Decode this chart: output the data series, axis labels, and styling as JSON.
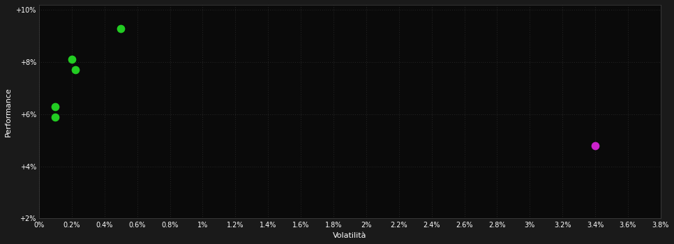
{
  "background_color": "#1a1a1a",
  "plot_bg_color": "#0a0a0a",
  "grid_color": "#444444",
  "text_color": "#ffffff",
  "xlabel": "Volatilità",
  "ylabel": "Performance",
  "xlim": [
    0.0,
    0.038
  ],
  "ylim": [
    0.02,
    0.102
  ],
  "xticks": [
    0.0,
    0.002,
    0.004,
    0.006,
    0.008,
    0.01,
    0.012,
    0.014,
    0.016,
    0.018,
    0.02,
    0.022,
    0.024,
    0.026,
    0.028,
    0.03,
    0.032,
    0.034,
    0.036,
    0.038
  ],
  "xtick_labels": [
    "0%",
    "0.2%",
    "0.4%",
    "0.6%",
    "0.8%",
    "1%",
    "1.2%",
    "1.4%",
    "1.6%",
    "1.8%",
    "2%",
    "2.2%",
    "2.4%",
    "2.6%",
    "2.8%",
    "3%",
    "3.2%",
    "3.4%",
    "3.6%",
    "3.8%"
  ],
  "yticks": [
    0.02,
    0.04,
    0.06,
    0.08,
    0.1
  ],
  "ytick_labels": [
    "+2%",
    "+4%",
    "+6%",
    "+8%",
    "+10%"
  ],
  "green_points_x": [
    0.005,
    0.002,
    0.0022,
    0.001,
    0.001
  ],
  "green_points_y": [
    0.093,
    0.081,
    0.077,
    0.063,
    0.059
  ],
  "magenta_points_x": [
    0.034
  ],
  "magenta_points_y": [
    0.048
  ],
  "green_color": "#22cc22",
  "magenta_color": "#cc22cc",
  "marker_size": 55
}
